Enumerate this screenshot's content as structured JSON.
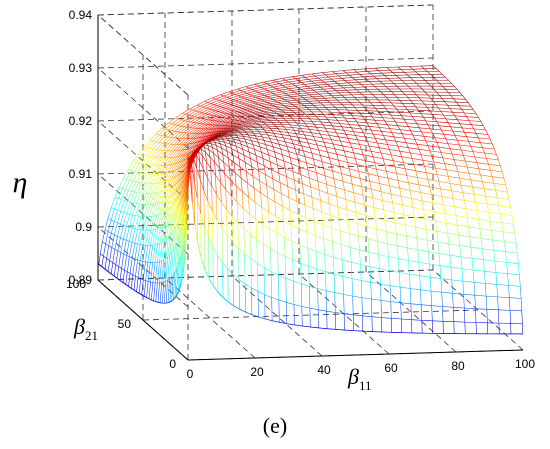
{
  "chart_data": {
    "type": "surface",
    "panel_label": "(e)",
    "zlabel": "η",
    "xlabel_base": "β",
    "xlabel_sub": "11",
    "ylabel_base": "β",
    "ylabel_sub": "21",
    "xlim": [
      0,
      100
    ],
    "ylim": [
      0,
      100
    ],
    "zlim": [
      0.89,
      0.94
    ],
    "x_ticks": [
      "0",
      "20",
      "40",
      "60",
      "80",
      "100"
    ],
    "y_ticks": [
      "0",
      "50",
      "100"
    ],
    "z_ticks": [
      "0.89",
      "0.9",
      "0.91",
      "0.92",
      "0.93",
      "0.94"
    ],
    "colormap": "jet",
    "grid": true,
    "surface_samples": [
      {
        "beta11": 0,
        "beta21": 100,
        "eta": 0.8915
      },
      {
        "beta11": 0,
        "beta21": 2,
        "eta": 0.914
      },
      {
        "beta11": 2,
        "beta21": 2,
        "eta": 0.92
      },
      {
        "beta11": 5,
        "beta21": 5,
        "eta": 0.9255
      },
      {
        "beta11": 20,
        "beta21": 20,
        "eta": 0.93
      },
      {
        "beta11": 60,
        "beta21": 60,
        "eta": 0.9285
      },
      {
        "beta11": 100,
        "beta21": 100,
        "eta": 0.927
      },
      {
        "beta11": 100,
        "beta21": 0,
        "eta": 0.8905
      },
      {
        "beta11": 2,
        "beta21": 100,
        "eta": 0.8915
      }
    ]
  }
}
